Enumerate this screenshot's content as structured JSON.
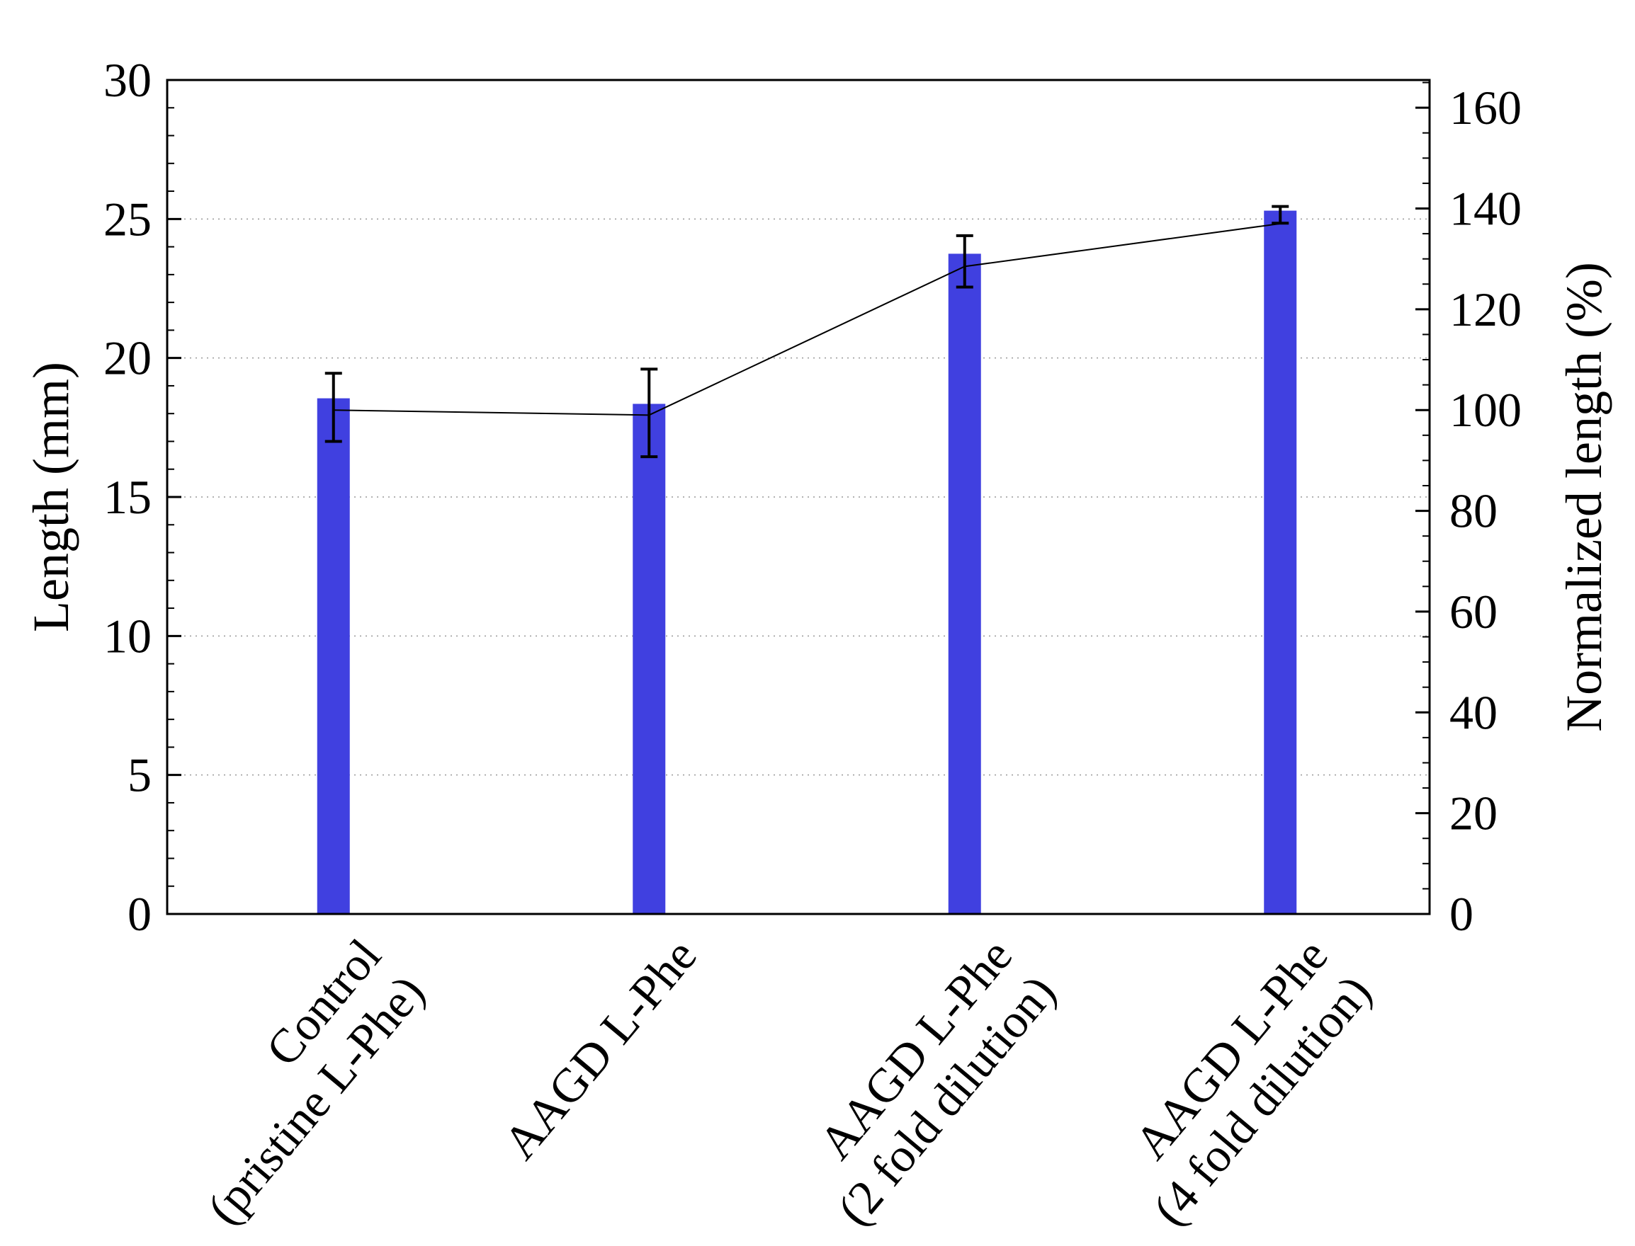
{
  "chart_data": {
    "type": "bar",
    "categories": [
      [
        "Control",
        "(pristine L-Phe)"
      ],
      [
        "AAGD L-Phe"
      ],
      [
        "AAGD L-Phe",
        "(2 fold dilution)"
      ],
      [
        "AAGD L-Phe",
        "(4 fold dilution)"
      ]
    ],
    "series": [
      {
        "type": "bar",
        "axis": "left",
        "values": [
          18.55,
          18.35,
          23.75,
          25.3
        ],
        "error_low": [
          17.0,
          16.45,
          22.55,
          24.85
        ],
        "error_high": [
          19.45,
          19.6,
          24.4,
          25.45
        ],
        "color": "#4040e0"
      },
      {
        "type": "line",
        "axis": "right",
        "values": [
          100,
          99,
          128.5,
          137
        ],
        "color": "#000000"
      }
    ],
    "xlabel": "",
    "ylabel": "Length (mm)",
    "ylabel_right": "Normalized length (%)",
    "ylim": [
      0,
      30
    ],
    "ylim_right": [
      0,
      165.5
    ],
    "yticks": [
      "0",
      "5",
      "10",
      "15",
      "20",
      "25",
      "30"
    ],
    "yticks_right": [
      "0",
      "20",
      "40",
      "60",
      "80",
      "100",
      "120",
      "140",
      "160"
    ],
    "grid": "horizontal dotted",
    "legend": "none"
  }
}
